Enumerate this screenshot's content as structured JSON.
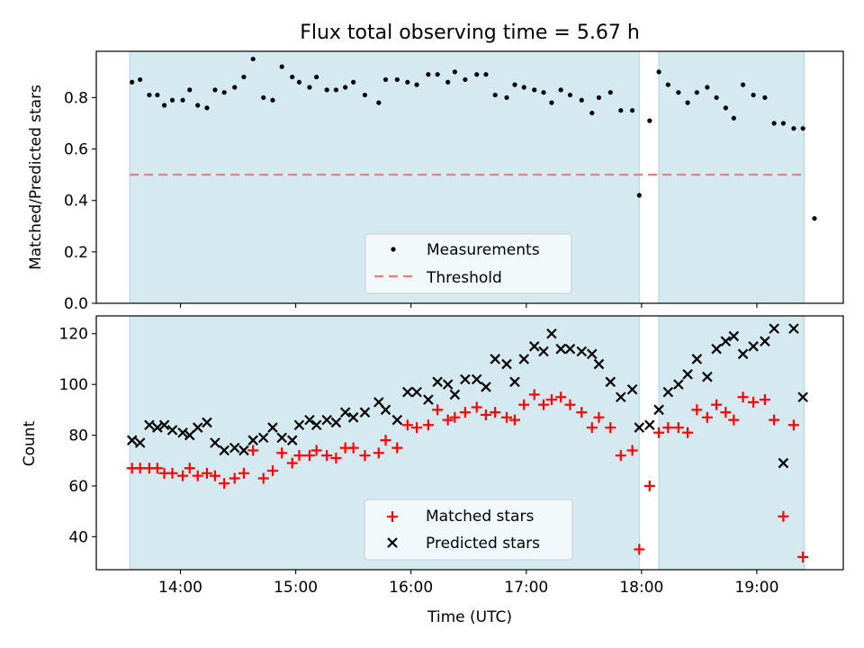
{
  "chart_data": [
    {
      "type": "scatter",
      "title": "Flux total observing time = 5.67 h",
      "ylabel": "Matched/Predicted stars",
      "xlabel": "",
      "xlim": [
        13.27,
        19.75
      ],
      "ylim": [
        0,
        0.98
      ],
      "yticks": [
        0.0,
        0.2,
        0.4,
        0.6,
        0.8
      ],
      "ytick_labels": [
        "0.0",
        "0.2",
        "0.4",
        "0.6",
        "0.8"
      ],
      "grid": false,
      "legend_position": "lower center",
      "shaded_spans": [
        [
          13.56,
          17.98
        ],
        [
          18.15,
          19.41
        ]
      ],
      "threshold": {
        "name": "Threshold",
        "value": 0.5,
        "x_range": [
          13.56,
          19.41
        ],
        "color": "#f07b7b"
      },
      "series": [
        {
          "name": "Measurements",
          "color": "#000000",
          "marker": "dot",
          "x": [
            13.58,
            13.65,
            13.73,
            13.8,
            13.86,
            13.93,
            14.02,
            14.08,
            14.15,
            14.23,
            14.3,
            14.38,
            14.47,
            14.55,
            14.63,
            14.72,
            14.8,
            14.88,
            14.97,
            15.03,
            15.12,
            15.18,
            15.27,
            15.35,
            15.43,
            15.5,
            15.6,
            15.72,
            15.78,
            15.88,
            15.97,
            16.05,
            16.15,
            16.23,
            16.32,
            16.38,
            16.47,
            16.57,
            16.65,
            16.73,
            16.83,
            16.9,
            16.98,
            17.07,
            17.15,
            17.22,
            17.3,
            17.38,
            17.48,
            17.57,
            17.63,
            17.73,
            17.82,
            17.92,
            17.98,
            18.07,
            18.15,
            18.23,
            18.32,
            18.4,
            18.48,
            18.57,
            18.65,
            18.73,
            18.8,
            18.88,
            18.97,
            19.07,
            19.15,
            19.23,
            19.32,
            19.4,
            19.5
          ],
          "y": [
            0.86,
            0.87,
            0.81,
            0.81,
            0.77,
            0.79,
            0.79,
            0.83,
            0.77,
            0.76,
            0.83,
            0.82,
            0.84,
            0.88,
            0.95,
            0.8,
            0.79,
            0.92,
            0.88,
            0.86,
            0.84,
            0.88,
            0.83,
            0.83,
            0.84,
            0.86,
            0.81,
            0.78,
            0.87,
            0.87,
            0.86,
            0.85,
            0.89,
            0.89,
            0.86,
            0.9,
            0.87,
            0.89,
            0.89,
            0.81,
            0.8,
            0.85,
            0.84,
            0.83,
            0.82,
            0.78,
            0.83,
            0.81,
            0.79,
            0.74,
            0.8,
            0.82,
            0.75,
            0.75,
            0.42,
            0.71,
            0.9,
            0.85,
            0.82,
            0.78,
            0.82,
            0.84,
            0.8,
            0.76,
            0.72,
            0.85,
            0.81,
            0.8,
            0.7,
            0.7,
            0.68,
            0.68,
            0.33
          ]
        }
      ]
    },
    {
      "type": "scatter",
      "title": "",
      "ylabel": "Count",
      "xlabel": "Time (UTC)",
      "xlim": [
        13.27,
        19.75
      ],
      "ylim": [
        27,
        127
      ],
      "yticks": [
        40,
        60,
        80,
        100,
        120
      ],
      "ytick_labels": [
        "40",
        "60",
        "80",
        "100",
        "120"
      ],
      "xticks": [
        14,
        15,
        16,
        17,
        18,
        19
      ],
      "xtick_labels": [
        "14:00",
        "15:00",
        "16:00",
        "17:00",
        "18:00",
        "19:00"
      ],
      "grid": false,
      "legend_position": "lower center",
      "shaded_spans": [
        [
          13.56,
          17.98
        ],
        [
          18.15,
          19.41
        ]
      ],
      "series": [
        {
          "name": "Matched stars",
          "color": "#ff0000",
          "marker": "plus",
          "x": [
            13.58,
            13.65,
            13.73,
            13.8,
            13.86,
            13.93,
            14.02,
            14.08,
            14.15,
            14.23,
            14.3,
            14.38,
            14.47,
            14.55,
            14.63,
            14.72,
            14.8,
            14.88,
            14.97,
            15.03,
            15.12,
            15.18,
            15.27,
            15.35,
            15.43,
            15.5,
            15.6,
            15.72,
            15.78,
            15.88,
            15.97,
            16.05,
            16.15,
            16.23,
            16.32,
            16.38,
            16.47,
            16.57,
            16.65,
            16.73,
            16.83,
            16.9,
            16.98,
            17.07,
            17.15,
            17.22,
            17.3,
            17.38,
            17.48,
            17.57,
            17.63,
            17.73,
            17.82,
            17.92,
            17.98,
            18.07,
            18.15,
            18.23,
            18.32,
            18.4,
            18.48,
            18.57,
            18.65,
            18.73,
            18.8,
            18.88,
            18.97,
            19.07,
            19.15,
            19.23,
            19.32,
            19.4,
            19.5
          ],
          "y": [
            67,
            67,
            67,
            67,
            65,
            65,
            64,
            67,
            64,
            65,
            64,
            61,
            63,
            65,
            74,
            63,
            66,
            73,
            69,
            72,
            72,
            74,
            72,
            71,
            75,
            75,
            72,
            73,
            78,
            75,
            84,
            83,
            84,
            90,
            86,
            87,
            89,
            91,
            88,
            89,
            87,
            86,
            92,
            96,
            92,
            94,
            95,
            92,
            89,
            83,
            87,
            83,
            72,
            74,
            35,
            60,
            81,
            83,
            83,
            81,
            90,
            87,
            92,
            89,
            86,
            95,
            93,
            94,
            86,
            48,
            84,
            32,
            null
          ]
        },
        {
          "name": "Predicted stars",
          "color": "#000000",
          "marker": "x",
          "x": [
            13.58,
            13.65,
            13.73,
            13.8,
            13.86,
            13.93,
            14.02,
            14.08,
            14.15,
            14.23,
            14.3,
            14.38,
            14.47,
            14.55,
            14.63,
            14.72,
            14.8,
            14.88,
            14.97,
            15.03,
            15.12,
            15.18,
            15.27,
            15.35,
            15.43,
            15.5,
            15.6,
            15.72,
            15.78,
            15.88,
            15.97,
            16.05,
            16.15,
            16.23,
            16.32,
            16.38,
            16.47,
            16.57,
            16.65,
            16.73,
            16.83,
            16.9,
            16.98,
            17.07,
            17.15,
            17.22,
            17.3,
            17.38,
            17.48,
            17.57,
            17.63,
            17.73,
            17.82,
            17.92,
            17.98,
            18.07,
            18.15,
            18.23,
            18.32,
            18.4,
            18.48,
            18.57,
            18.65,
            18.73,
            18.8,
            18.88,
            18.97,
            19.07,
            19.15,
            19.23,
            19.32,
            19.4,
            19.5
          ],
          "y": [
            78,
            77,
            84,
            83,
            84,
            82,
            81,
            80,
            83,
            85,
            77,
            74,
            75,
            74,
            78,
            79,
            83,
            79,
            78,
            84,
            86,
            84,
            86,
            85,
            89,
            87,
            89,
            93,
            90,
            86,
            97,
            97,
            94,
            101,
            100,
            96,
            102,
            102,
            99,
            110,
            108,
            101,
            110,
            115,
            113,
            120,
            114,
            114,
            113,
            112,
            108,
            101,
            95,
            98,
            83,
            84,
            90,
            97,
            100,
            104,
            110,
            103,
            114,
            117,
            119,
            112,
            115,
            117,
            122,
            69,
            122,
            95,
            null
          ]
        }
      ]
    }
  ]
}
